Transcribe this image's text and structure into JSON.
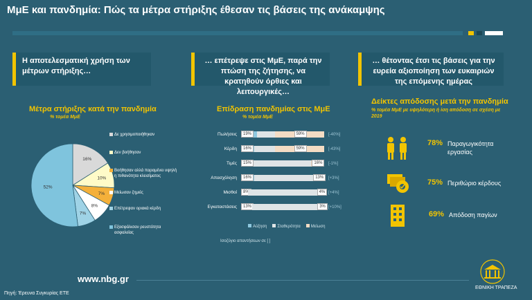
{
  "title": "ΜμΕ και πανδημία: Πώς τα μέτρα στήριξης έθεσαν τις βάσεις της ανάκαμψης",
  "headers": [
    "Η αποτελεσματική χρήση των μέτρων στήριξης…",
    "… επέτρεψε στις ΜμΕ, παρά την πτώση της ζήτησης, να κρατηθούν όρθιες και λειτουργικές…",
    "… θέτοντας έτσι τις βάσεις για την ευρεία αξιοποίηση των ευκαιριών της επόμενης ημέρας"
  ],
  "colors": {
    "accent": "#f2c400",
    "pie_main": "#7fc4dd",
    "pie_sub": "#9fd3e6",
    "pie_grey": "#d9d9d9",
    "pie_yellow": "#fffbc8",
    "pie_orange": "#f4b03a"
  },
  "pie_section": {
    "title": "Μέτρα στήριξης κατά την πανδημία",
    "subtitle": "% τομέα ΜμΕ"
  },
  "bar_section": {
    "title": "Επίδραση πανδημίας στις ΜμΕ",
    "subtitle": "% τομέα ΜμΕ",
    "legend": [
      "Αύξηση",
      "Σταθερότητα",
      "Μείωση"
    ],
    "footnote": "Ισοζύγιο απαντήσεων σε [ ]"
  },
  "kpi_section": {
    "title": "Δείκτες απόδοσης μετά την πανδημία",
    "subtitle": "% τομέα ΜμΕ με υψηλότερη ή ίση απόδοση σε σχέση με 2019",
    "items": [
      {
        "value": "78%",
        "label": "Παραγωγικότητα εργασίας",
        "icon": "workers-icon"
      },
      {
        "value": "75%",
        "label": "Περιθώριο κέρδους",
        "icon": "money-gear-icon"
      },
      {
        "value": "69%",
        "label": "Απόδοση παγίων",
        "icon": "building-icon"
      }
    ]
  },
  "chart_data": [
    {
      "type": "pie",
      "title": "Μέτρα στήριξης κατά την πανδημία",
      "subtitle": "% τομέα ΜμΕ",
      "slices": [
        {
          "label": "Δε χρησιμοποιήθηκαν",
          "value": 16,
          "display": "16%"
        },
        {
          "label": "Δεν βοήθησαν",
          "value": 10,
          "display": "10%"
        },
        {
          "label": "Βοήθησαν αλλά παραμένει υψηλή η πιθανότητα κλεισίματος",
          "value": 7,
          "display": "7%"
        },
        {
          "label": "Μείωσαν ζημιές",
          "value": 8,
          "display": "8%"
        },
        {
          "label": "Επέτρεψαν οριακά κέρδη",
          "value": 7,
          "display": "7%"
        },
        {
          "label": "Εξασφάλισαν ρευστότητα ασφαλείας",
          "value": 52,
          "display": "52%"
        }
      ]
    },
    {
      "type": "bar",
      "stacked": true,
      "orientation": "horizontal",
      "title": "Επίδραση πανδημίας στις ΜμΕ",
      "subtitle": "% τομέα ΜμΕ",
      "categories": [
        "Πωλήσεις",
        "Κέρδη",
        "Τιμές",
        "Απασχόληση",
        "Μισθοί",
        "Εγκαταστάσεις"
      ],
      "series": [
        {
          "name": "Αύξηση",
          "values": [
            19,
            16,
            15,
            16,
            8,
            13
          ]
        },
        {
          "name": "Σταθερότητα",
          "values": [
            22,
            25,
            69,
            71,
            88,
            84
          ]
        },
        {
          "name": "Μείωση",
          "values": [
            59,
            59,
            16,
            13,
            4,
            3
          ]
        }
      ],
      "balance": [
        "[-40%]",
        "[-43%]",
        "[-1%]",
        "[+3%]",
        "[+4%]",
        "[+10%]"
      ]
    }
  ],
  "footer": {
    "url": "www.nbg.gr",
    "source": "Πηγή: Έρευνα Συγκυρίας ΕΤΕ",
    "bank": "ΕΘΝΙΚΗ ΤΡΑΠΕΖΑ"
  }
}
